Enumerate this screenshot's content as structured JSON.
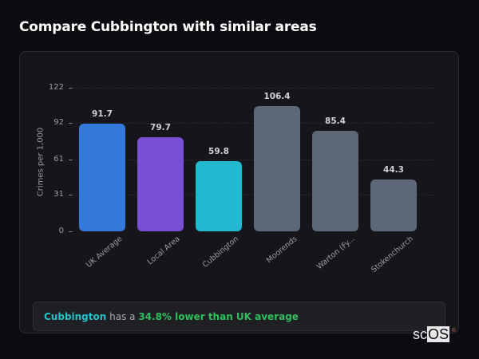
{
  "page": {
    "title": "Compare Cubbington with similar areas"
  },
  "chart_data": {
    "type": "bar",
    "title": "Compare Cubbington with similar areas",
    "xlabel": "",
    "ylabel": "Crimes per 1,000",
    "ylim": [
      0,
      122
    ],
    "yticks": [
      0,
      31,
      61,
      92,
      122
    ],
    "grid": true,
    "legend": null,
    "categories": [
      "UK Average",
      "Local Area",
      "Cubbington",
      "Moorends",
      "Warton (Fy...",
      "Stokenchurch"
    ],
    "values": [
      91.7,
      79.7,
      59.8,
      106.4,
      85.4,
      44.3
    ],
    "value_labels": [
      "91.7",
      "79.7",
      "59.8",
      "106.4",
      "85.4",
      "44.3"
    ],
    "colors": [
      "#3578db",
      "#7b4fd4",
      "#22b8d0",
      "#5c6878",
      "#5c6878",
      "#5c6878"
    ]
  },
  "chart": {
    "ylabel": "Crimes per 1,000",
    "yticks": [
      "0",
      "31",
      "61",
      "92",
      "122"
    ],
    "bars": [
      {
        "label": "UK Average",
        "value": "91.7"
      },
      {
        "label": "Local Area",
        "value": "79.7"
      },
      {
        "label": "Cubbington",
        "value": "59.8"
      },
      {
        "label": "Moorends",
        "value": "106.4"
      },
      {
        "label": "Warton (Fy...",
        "value": "85.4"
      },
      {
        "label": "Stokenchurch",
        "value": "44.3"
      }
    ]
  },
  "summary": {
    "area": "Cubbington",
    "middle": " has a ",
    "stat": "34.8% lower than UK average",
    "area_color": "#22c3c9",
    "stat_color": "#2fbf5f"
  },
  "logo": {
    "part1": "sc",
    "part2": "OS",
    "reg": "®"
  }
}
